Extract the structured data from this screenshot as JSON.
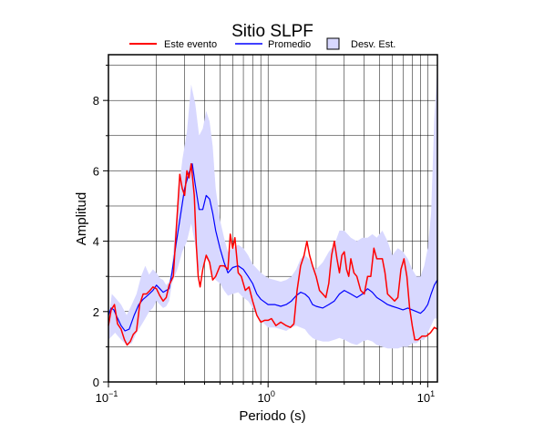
{
  "chart_data": {
    "type": "line",
    "title": "Sitio SLPF",
    "xlabel": "Periodo (s)",
    "ylabel": "Amplitud",
    "xscale": "log",
    "xlim": [
      0.1,
      11.5
    ],
    "ylim": [
      0,
      9.3
    ],
    "grid": true,
    "legend_position": "top",
    "x_tick_labels": [
      {
        "value": 0.1,
        "base": "10",
        "exp": "−1"
      },
      {
        "value": 1,
        "base": "10",
        "exp": "0"
      },
      {
        "value": 10,
        "base": "10",
        "exp": "1"
      }
    ],
    "y_ticks": [
      {
        "value": 0,
        "label": "0"
      },
      {
        "value": 2,
        "label": "2"
      },
      {
        "value": 4,
        "label": "4"
      },
      {
        "value": 6,
        "label": "6"
      },
      {
        "value": 8,
        "label": "8"
      }
    ],
    "series": [
      {
        "name": "Este evento",
        "color": "#ff0000",
        "points": [
          [
            0.1,
            1.6
          ],
          [
            0.104,
            2.05
          ],
          [
            0.109,
            2.2
          ],
          [
            0.114,
            1.65
          ],
          [
            0.12,
            1.5
          ],
          [
            0.126,
            1.2
          ],
          [
            0.131,
            1.05
          ],
          [
            0.137,
            1.15
          ],
          [
            0.143,
            1.35
          ],
          [
            0.15,
            1.45
          ],
          [
            0.157,
            2.2
          ],
          [
            0.165,
            2.5
          ],
          [
            0.173,
            2.5
          ],
          [
            0.182,
            2.6
          ],
          [
            0.19,
            2.7
          ],
          [
            0.2,
            2.65
          ],
          [
            0.21,
            2.45
          ],
          [
            0.22,
            2.3
          ],
          [
            0.23,
            2.4
          ],
          [
            0.24,
            2.75
          ],
          [
            0.255,
            3.0
          ],
          [
            0.265,
            4.2
          ],
          [
            0.28,
            5.9
          ],
          [
            0.29,
            5.5
          ],
          [
            0.3,
            5.3
          ],
          [
            0.31,
            6.0
          ],
          [
            0.32,
            5.8
          ],
          [
            0.33,
            6.2
          ],
          [
            0.345,
            5.3
          ],
          [
            0.355,
            3.9
          ],
          [
            0.365,
            3.0
          ],
          [
            0.375,
            2.7
          ],
          [
            0.39,
            3.2
          ],
          [
            0.41,
            3.6
          ],
          [
            0.43,
            3.4
          ],
          [
            0.45,
            2.9
          ],
          [
            0.47,
            3.0
          ],
          [
            0.5,
            3.3
          ],
          [
            0.53,
            3.3
          ],
          [
            0.56,
            3.2
          ],
          [
            0.58,
            4.2
          ],
          [
            0.6,
            3.8
          ],
          [
            0.62,
            4.1
          ],
          [
            0.65,
            3.1
          ],
          [
            0.68,
            3.0
          ],
          [
            0.72,
            2.6
          ],
          [
            0.76,
            2.7
          ],
          [
            0.8,
            2.3
          ],
          [
            0.85,
            1.9
          ],
          [
            0.9,
            1.7
          ],
          [
            0.95,
            1.75
          ],
          [
            1.0,
            1.75
          ],
          [
            1.05,
            1.8
          ],
          [
            1.12,
            1.6
          ],
          [
            1.2,
            1.7
          ],
          [
            1.3,
            1.6
          ],
          [
            1.38,
            1.55
          ],
          [
            1.45,
            1.65
          ],
          [
            1.52,
            2.6
          ],
          [
            1.6,
            3.3
          ],
          [
            1.68,
            3.6
          ],
          [
            1.75,
            4.0
          ],
          [
            1.82,
            3.6
          ],
          [
            1.9,
            3.3
          ],
          [
            2.0,
            3.0
          ],
          [
            2.1,
            2.6
          ],
          [
            2.2,
            2.5
          ],
          [
            2.3,
            2.4
          ],
          [
            2.4,
            2.8
          ],
          [
            2.5,
            3.6
          ],
          [
            2.6,
            4.0
          ],
          [
            2.7,
            3.5
          ],
          [
            2.8,
            3.1
          ],
          [
            2.9,
            3.6
          ],
          [
            3.0,
            3.7
          ],
          [
            3.1,
            3.2
          ],
          [
            3.2,
            3.0
          ],
          [
            3.3,
            3.5
          ],
          [
            3.45,
            3.1
          ],
          [
            3.6,
            3.0
          ],
          [
            3.8,
            2.6
          ],
          [
            4.0,
            2.5
          ],
          [
            4.2,
            3.0
          ],
          [
            4.4,
            3.0
          ],
          [
            4.6,
            3.8
          ],
          [
            4.8,
            3.5
          ],
          [
            5.0,
            3.5
          ],
          [
            5.2,
            3.5
          ],
          [
            5.4,
            3.1
          ],
          [
            5.6,
            2.5
          ],
          [
            5.9,
            2.4
          ],
          [
            6.2,
            2.3
          ],
          [
            6.5,
            2.4
          ],
          [
            6.8,
            3.2
          ],
          [
            7.1,
            3.5
          ],
          [
            7.4,
            3.0
          ],
          [
            7.7,
            2.1
          ],
          [
            8.0,
            1.6
          ],
          [
            8.3,
            1.2
          ],
          [
            8.7,
            1.2
          ],
          [
            9.2,
            1.3
          ],
          [
            9.8,
            1.3
          ],
          [
            10.4,
            1.4
          ],
          [
            11.0,
            1.55
          ],
          [
            11.5,
            1.5
          ]
        ]
      },
      {
        "name": "Promedio",
        "color": "#0000ff",
        "points": [
          [
            0.1,
            1.9
          ],
          [
            0.104,
            2.1
          ],
          [
            0.108,
            2.05
          ],
          [
            0.113,
            1.85
          ],
          [
            0.12,
            1.6
          ],
          [
            0.127,
            1.45
          ],
          [
            0.135,
            1.5
          ],
          [
            0.145,
            1.9
          ],
          [
            0.155,
            2.2
          ],
          [
            0.165,
            2.35
          ],
          [
            0.175,
            2.45
          ],
          [
            0.19,
            2.6
          ],
          [
            0.2,
            2.75
          ],
          [
            0.21,
            2.65
          ],
          [
            0.22,
            2.55
          ],
          [
            0.23,
            2.6
          ],
          [
            0.24,
            2.65
          ],
          [
            0.25,
            3.1
          ],
          [
            0.265,
            3.9
          ],
          [
            0.28,
            4.6
          ],
          [
            0.3,
            5.5
          ],
          [
            0.32,
            5.95
          ],
          [
            0.335,
            6.2
          ],
          [
            0.35,
            5.6
          ],
          [
            0.37,
            4.9
          ],
          [
            0.39,
            4.9
          ],
          [
            0.41,
            5.3
          ],
          [
            0.43,
            5.2
          ],
          [
            0.45,
            4.8
          ],
          [
            0.47,
            4.3
          ],
          [
            0.5,
            3.8
          ],
          [
            0.53,
            3.4
          ],
          [
            0.56,
            3.1
          ],
          [
            0.6,
            3.25
          ],
          [
            0.65,
            3.3
          ],
          [
            0.7,
            3.2
          ],
          [
            0.75,
            3.0
          ],
          [
            0.8,
            2.8
          ],
          [
            0.85,
            2.5
          ],
          [
            0.9,
            2.35
          ],
          [
            1.0,
            2.2
          ],
          [
            1.1,
            2.2
          ],
          [
            1.2,
            2.15
          ],
          [
            1.3,
            2.2
          ],
          [
            1.4,
            2.3
          ],
          [
            1.5,
            2.45
          ],
          [
            1.6,
            2.55
          ],
          [
            1.7,
            2.5
          ],
          [
            1.8,
            2.4
          ],
          [
            1.9,
            2.2
          ],
          [
            2.0,
            2.15
          ],
          [
            2.2,
            2.1
          ],
          [
            2.4,
            2.2
          ],
          [
            2.6,
            2.3
          ],
          [
            2.8,
            2.5
          ],
          [
            3.0,
            2.6
          ],
          [
            3.3,
            2.5
          ],
          [
            3.6,
            2.4
          ],
          [
            3.9,
            2.5
          ],
          [
            4.2,
            2.65
          ],
          [
            4.5,
            2.55
          ],
          [
            4.8,
            2.4
          ],
          [
            5.2,
            2.3
          ],
          [
            5.6,
            2.2
          ],
          [
            6.0,
            2.15
          ],
          [
            6.5,
            2.1
          ],
          [
            7.0,
            2.05
          ],
          [
            7.5,
            2.1
          ],
          [
            8.0,
            2.05
          ],
          [
            8.5,
            2.0
          ],
          [
            9.0,
            1.95
          ],
          [
            9.5,
            2.05
          ],
          [
            10.0,
            2.2
          ],
          [
            10.5,
            2.5
          ],
          [
            11.0,
            2.75
          ],
          [
            11.5,
            2.9
          ]
        ]
      }
    ],
    "band": {
      "name": "Desv. Est.",
      "color": "#d8d8ff",
      "upper": [
        [
          0.1,
          1.8
        ],
        [
          0.105,
          2.5
        ],
        [
          0.11,
          2.4
        ],
        [
          0.12,
          2.2
        ],
        [
          0.13,
          1.9
        ],
        [
          0.14,
          2.2
        ],
        [
          0.15,
          2.5
        ],
        [
          0.16,
          3.0
        ],
        [
          0.17,
          3.3
        ],
        [
          0.18,
          3.05
        ],
        [
          0.19,
          3.2
        ],
        [
          0.2,
          3.1
        ],
        [
          0.21,
          2.95
        ],
        [
          0.22,
          2.9
        ],
        [
          0.23,
          2.75
        ],
        [
          0.24,
          2.85
        ],
        [
          0.25,
          3.3
        ],
        [
          0.27,
          5.0
        ],
        [
          0.29,
          6.3
        ],
        [
          0.31,
          7.1
        ],
        [
          0.33,
          8.45
        ],
        [
          0.35,
          7.9
        ],
        [
          0.37,
          7.0
        ],
        [
          0.39,
          7.2
        ],
        [
          0.41,
          7.7
        ],
        [
          0.43,
          7.4
        ],
        [
          0.45,
          6.7
        ],
        [
          0.47,
          5.5
        ],
        [
          0.5,
          4.6
        ],
        [
          0.53,
          4.1
        ],
        [
          0.56,
          3.7
        ],
        [
          0.6,
          3.8
        ],
        [
          0.65,
          3.9
        ],
        [
          0.7,
          3.8
        ],
        [
          0.75,
          3.6
        ],
        [
          0.8,
          3.35
        ],
        [
          0.9,
          3.1
        ],
        [
          1.0,
          2.95
        ],
        [
          1.1,
          2.9
        ],
        [
          1.2,
          2.85
        ],
        [
          1.3,
          2.9
        ],
        [
          1.4,
          3.0
        ],
        [
          1.5,
          3.2
        ],
        [
          1.6,
          3.5
        ],
        [
          1.7,
          3.6
        ],
        [
          1.8,
          3.5
        ],
        [
          1.9,
          3.3
        ],
        [
          2.0,
          3.2
        ],
        [
          2.2,
          3.4
        ],
        [
          2.4,
          3.7
        ],
        [
          2.6,
          3.9
        ],
        [
          2.8,
          4.3
        ],
        [
          3.0,
          4.3
        ],
        [
          3.3,
          4.1
        ],
        [
          3.6,
          4.0
        ],
        [
          3.9,
          4.1
        ],
        [
          4.2,
          4.1
        ],
        [
          4.5,
          4.2
        ],
        [
          4.8,
          4.1
        ],
        [
          5.2,
          4.3
        ],
        [
          5.6,
          4.0
        ],
        [
          6.0,
          3.6
        ],
        [
          6.5,
          3.8
        ],
        [
          7.0,
          3.7
        ],
        [
          7.5,
          3.5
        ],
        [
          8.0,
          3.2
        ],
        [
          8.5,
          3.0
        ],
        [
          9.0,
          3.0
        ],
        [
          9.5,
          3.3
        ],
        [
          10.0,
          3.8
        ],
        [
          10.5,
          4.8
        ],
        [
          11.0,
          7.5
        ],
        [
          11.5,
          9.0
        ]
      ],
      "lower": [
        [
          0.1,
          1.2
        ],
        [
          0.11,
          1.4
        ],
        [
          0.12,
          1.2
        ],
        [
          0.13,
          1.05
        ],
        [
          0.14,
          1.1
        ],
        [
          0.15,
          1.4
        ],
        [
          0.16,
          1.6
        ],
        [
          0.17,
          1.8
        ],
        [
          0.18,
          2.0
        ],
        [
          0.19,
          2.1
        ],
        [
          0.2,
          2.3
        ],
        [
          0.21,
          2.2
        ],
        [
          0.22,
          2.1
        ],
        [
          0.23,
          2.15
        ],
        [
          0.24,
          2.3
        ],
        [
          0.25,
          2.8
        ],
        [
          0.27,
          3.2
        ],
        [
          0.29,
          3.7
        ],
        [
          0.31,
          4.0
        ],
        [
          0.33,
          4.5
        ],
        [
          0.35,
          3.9
        ],
        [
          0.37,
          3.1
        ],
        [
          0.39,
          3.3
        ],
        [
          0.41,
          3.5
        ],
        [
          0.43,
          3.4
        ],
        [
          0.45,
          3.0
        ],
        [
          0.47,
          2.9
        ],
        [
          0.5,
          2.8
        ],
        [
          0.53,
          2.6
        ],
        [
          0.56,
          2.45
        ],
        [
          0.6,
          2.5
        ],
        [
          0.65,
          2.55
        ],
        [
          0.7,
          2.4
        ],
        [
          0.75,
          2.3
        ],
        [
          0.8,
          2.1
        ],
        [
          0.9,
          1.75
        ],
        [
          1.0,
          1.55
        ],
        [
          1.1,
          1.55
        ],
        [
          1.2,
          1.5
        ],
        [
          1.3,
          1.45
        ],
        [
          1.4,
          1.55
        ],
        [
          1.5,
          1.6
        ],
        [
          1.6,
          1.55
        ],
        [
          1.7,
          1.5
        ],
        [
          1.8,
          1.35
        ],
        [
          1.9,
          1.25
        ],
        [
          2.0,
          1.2
        ],
        [
          2.2,
          1.15
        ],
        [
          2.4,
          1.15
        ],
        [
          2.6,
          1.2
        ],
        [
          2.8,
          1.25
        ],
        [
          3.0,
          1.2
        ],
        [
          3.3,
          1.1
        ],
        [
          3.6,
          1.05
        ],
        [
          3.9,
          1.15
        ],
        [
          4.2,
          1.2
        ],
        [
          4.5,
          1.15
        ],
        [
          4.8,
          1.05
        ],
        [
          5.2,
          1.0
        ],
        [
          5.6,
          0.95
        ],
        [
          6.0,
          0.95
        ],
        [
          6.5,
          0.95
        ],
        [
          7.0,
          1.0
        ],
        [
          7.5,
          1.0
        ],
        [
          8.0,
          1.1
        ],
        [
          8.5,
          1.1
        ],
        [
          9.0,
          1.2
        ],
        [
          9.5,
          1.2
        ],
        [
          10.0,
          1.4
        ],
        [
          10.5,
          1.6
        ],
        [
          11.0,
          1.8
        ],
        [
          11.5,
          1.8
        ]
      ]
    }
  }
}
